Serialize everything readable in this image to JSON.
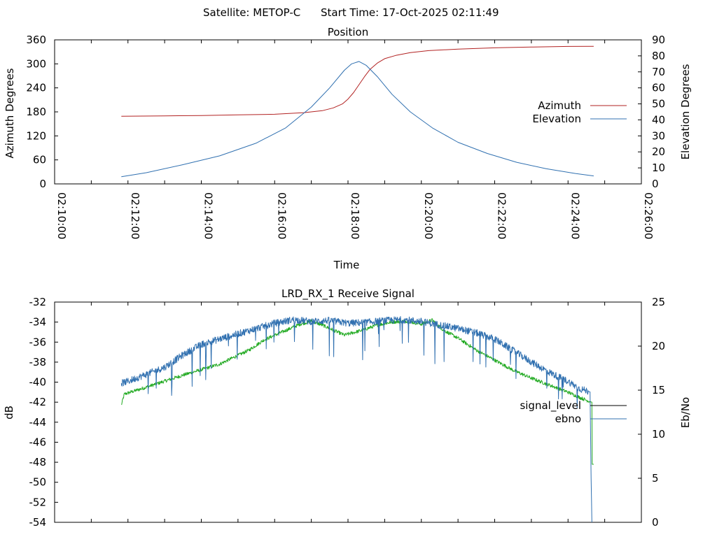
{
  "header": {
    "satellite_label": "Satellite: METOP-C",
    "start_time_label": "Start Time: 17-Oct-2025 02:11:49"
  },
  "chart_data": [
    {
      "type": "line",
      "title": "Position",
      "xlabel": "Time",
      "ylabel": "Azimuth Degrees",
      "y2label": "Elevation Degrees",
      "xlim_minutes": [
        0,
        16
      ],
      "ylim": [
        0,
        360
      ],
      "y2lim": [
        0,
        90
      ],
      "x_ticks_minutes": [
        0,
        2,
        4,
        6,
        8,
        10,
        12,
        14,
        16
      ],
      "x_tick_labels": [
        "02:10:00",
        "02:12:00",
        "02:14:00",
        "02:16:00",
        "02:18:00",
        "02:20:00",
        "02:22:00",
        "02:24:00",
        "02:26:00"
      ],
      "y_tick_labels": [
        "0",
        "60",
        "120",
        "180",
        "240",
        "300",
        "360"
      ],
      "y2_tick_labels": [
        "0",
        "10",
        "20",
        "30",
        "40",
        "50",
        "60",
        "70",
        "80",
        "90"
      ],
      "legend_position": "right",
      "series": [
        {
          "name": "Azimuth",
          "axis": "y",
          "color": "#b22222",
          "x": [
            1.82,
            3,
            4,
            5,
            6,
            6.8,
            7.3,
            7.6,
            7.85,
            8.0,
            8.15,
            8.3,
            8.45,
            8.6,
            8.8,
            9.0,
            9.3,
            9.7,
            10.2,
            11,
            12,
            13,
            14,
            14.7
          ],
          "y": [
            169,
            170,
            171,
            172.5,
            174,
            178,
            183,
            190,
            200,
            212,
            228,
            248,
            268,
            286,
            302,
            313,
            321,
            328,
            333,
            337,
            340,
            342,
            343.5,
            344
          ]
        },
        {
          "name": "Elevation",
          "axis": "y2",
          "color": "#3070b0",
          "x": [
            1.82,
            2.5,
            3.5,
            4.5,
            5.5,
            6.3,
            7.0,
            7.5,
            7.9,
            8.1,
            8.3,
            8.5,
            8.8,
            9.2,
            9.7,
            10.3,
            11,
            11.8,
            12.6,
            13.4,
            14.2,
            14.7
          ],
          "y": [
            4.5,
            7,
            12,
            17.5,
            25.5,
            35,
            48,
            60,
            71,
            75,
            76.5,
            74,
            67,
            56,
            45,
            35,
            26,
            19,
            13.5,
            9.5,
            6.5,
            5
          ]
        }
      ]
    },
    {
      "type": "line",
      "title": "LRD_RX_1 Receive Signal",
      "xlabel": "",
      "ylabel": "dB",
      "y2label": "Eb/No",
      "xlim_minutes": [
        0,
        16
      ],
      "ylim": [
        -54,
        -32
      ],
      "y2lim": [
        0,
        25
      ],
      "y_tick_labels": [
        "-54",
        "-52",
        "-50",
        "-48",
        "-46",
        "-44",
        "-42",
        "-40",
        "-38",
        "-36",
        "-34",
        "-32"
      ],
      "y2_tick_labels": [
        "0",
        "5",
        "10",
        "15",
        "20",
        "25"
      ],
      "legend_position": "right",
      "series": [
        {
          "name": "signal_level",
          "axis": "y",
          "color": "#22aa22",
          "legend_color": "#000000",
          "x": [
            1.82,
            1.9,
            2.5,
            3.5,
            4.5,
            5.3,
            5.7,
            6.2,
            6.7,
            7.0,
            7.3,
            7.6,
            7.9,
            8.1,
            8.4,
            8.8,
            9.2,
            9.6,
            10.0,
            10.3,
            10.6,
            11.0,
            11.5,
            12.0,
            12.5,
            13.0,
            13.5,
            14.0,
            14.3,
            14.5,
            14.65,
            14.66,
            14.7
          ],
          "y": [
            -42.3,
            -41.2,
            -40.5,
            -39.3,
            -38.2,
            -36.8,
            -35.8,
            -35.0,
            -34.2,
            -33.9,
            -34.3,
            -34.8,
            -35.3,
            -35.1,
            -34.8,
            -34.3,
            -34.0,
            -33.9,
            -34.2,
            -33.8,
            -34.8,
            -35.6,
            -36.8,
            -37.8,
            -38.8,
            -39.6,
            -40.3,
            -41.0,
            -41.5,
            -41.8,
            -42.0,
            -48.2,
            -48.2
          ]
        },
        {
          "name": "ebno",
          "axis": "y2",
          "color": "#3070b0",
          "x": [
            1.82,
            2.0,
            2.5,
            3.0,
            3.5,
            4.0,
            4.5,
            5.0,
            5.5,
            6.0,
            6.5,
            7.0,
            7.5,
            8.0,
            8.5,
            9.0,
            9.5,
            10.0,
            10.5,
            11.0,
            11.5,
            12.0,
            12.5,
            13.0,
            13.5,
            14.0,
            14.3,
            14.6,
            14.63,
            14.65
          ],
          "y": [
            15.8,
            16.0,
            16.8,
            17.6,
            19.0,
            20.2,
            20.8,
            21.4,
            22.0,
            22.6,
            23.0,
            22.8,
            22.9,
            22.6,
            22.7,
            22.9,
            23.0,
            22.8,
            22.4,
            22.0,
            21.5,
            20.8,
            19.5,
            18.2,
            17.0,
            16.0,
            15.2,
            14.8,
            5.0,
            0.0
          ]
        }
      ]
    }
  ]
}
